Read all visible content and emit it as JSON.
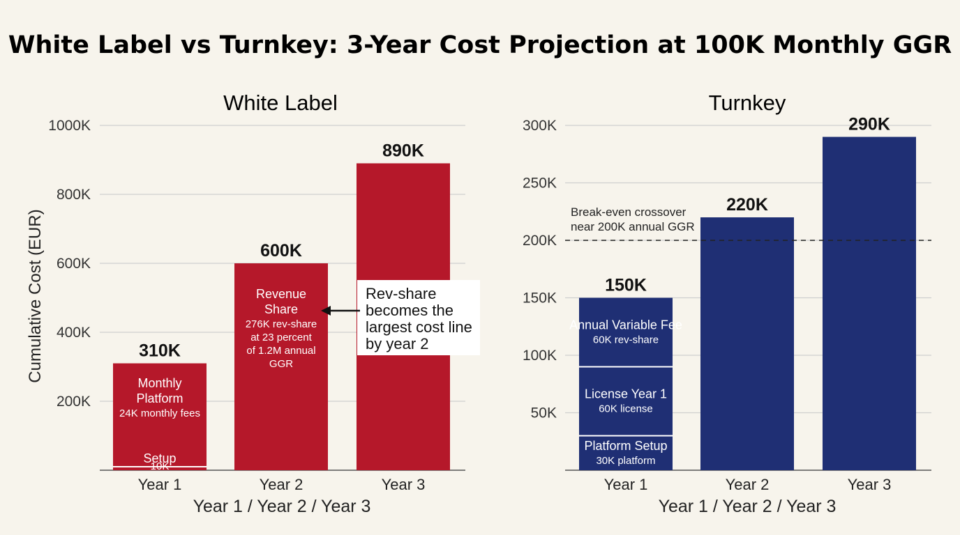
{
  "title": "White Label vs Turnkey: 3-Year Cost Projection at 100K Monthly GGR",
  "colors": {
    "white_label": "#b5182a",
    "turnkey": "#1f2f74",
    "background": "#f7f4ec",
    "grid": "#cfcfcf"
  },
  "chart_data": [
    {
      "type": "bar",
      "title": "White Label",
      "ylabel": "Cumulative Cost (EUR)",
      "xlabel": "Year 1 / Year 2 / Year 3",
      "categories": [
        "Year 1",
        "Year 2",
        "Year 3"
      ],
      "values": [
        310,
        600,
        890
      ],
      "total_labels": [
        "310K",
        "600K",
        "890K"
      ],
      "ylim": [
        0,
        1000
      ],
      "yticks": [
        200,
        400,
        600,
        800,
        1000
      ],
      "ytick_labels": [
        "200K",
        "400K",
        "600K",
        "800K",
        "1000K"
      ],
      "grid": true,
      "color": "#b5182a",
      "segments": [
        {
          "category": "Year 1",
          "start": 0,
          "end": 10,
          "label": "Setup",
          "sublabel": "10K"
        },
        {
          "category": "Year 1",
          "start": 10,
          "end": 310,
          "label": "Monthly Platform",
          "sublabel": "24K monthly fees"
        },
        {
          "category": "Year 2",
          "start": 0,
          "end": 600,
          "label": "Revenue Share",
          "sublabel": "276K rev-share at 23 percent of 1.2M annual GGR"
        }
      ],
      "annotations": [
        {
          "text": "Rev-share becomes the largest cost line by year 2",
          "points_to": "Year 2"
        }
      ]
    },
    {
      "type": "bar",
      "title": "Turnkey",
      "xlabel": "Year 1 / Year 2 / Year 3",
      "categories": [
        "Year 1",
        "Year 2",
        "Year 3"
      ],
      "values": [
        150,
        220,
        290
      ],
      "total_labels": [
        "150K",
        "220K",
        "290K"
      ],
      "ylim": [
        0,
        300
      ],
      "yticks": [
        50,
        100,
        150,
        200,
        250,
        300
      ],
      "ytick_labels": [
        "50K",
        "100K",
        "150K",
        "200K",
        "250K",
        "300K"
      ],
      "grid": true,
      "color": "#1f2f74",
      "segments": [
        {
          "category": "Year 1",
          "start": 0,
          "end": 30,
          "label": "Platform Setup",
          "sublabel": "30K platform"
        },
        {
          "category": "Year 1",
          "start": 30,
          "end": 90,
          "label": "License Year 1",
          "sublabel": "60K license"
        },
        {
          "category": "Year 1",
          "start": 90,
          "end": 150,
          "label": "Annual Variable Fee",
          "sublabel": "60K rev-share"
        }
      ],
      "reference_line": {
        "value": 200,
        "label": "Break-even crossover near 200K annual GGR"
      }
    }
  ]
}
